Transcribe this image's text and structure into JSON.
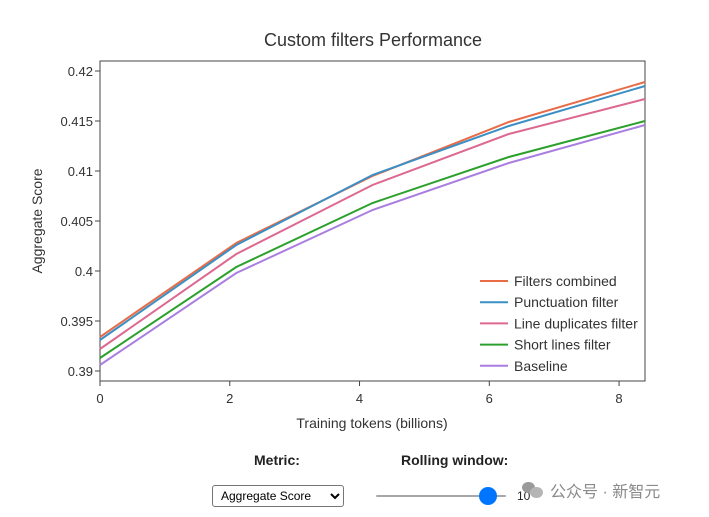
{
  "chart_data": {
    "type": "line",
    "title": "Custom filters Performance",
    "xlabel": "Training tokens (billions)",
    "ylabel": "Aggregate Score",
    "xlim": [
      0,
      8.4
    ],
    "ylim": [
      0.389,
      0.421
    ],
    "xticks": [
      0,
      2,
      4,
      6,
      8
    ],
    "yticks": [
      0.39,
      0.395,
      0.4,
      0.405,
      0.41,
      0.415,
      0.42
    ],
    "ytick_labels": [
      "0.39",
      "0.395",
      "0.4",
      "0.405",
      "0.41",
      "0.415",
      "0.42"
    ],
    "x": [
      0,
      2.1,
      4.2,
      6.3,
      8.4
    ],
    "legend_position": "bottom-right",
    "series": [
      {
        "name": "Filters combined",
        "color": "#e86c48",
        "values": [
          0.3934,
          0.4028,
          0.4095,
          0.4149,
          0.4189
        ]
      },
      {
        "name": "Punctuation filter",
        "color": "#3b8fc5",
        "values": [
          0.3931,
          0.4026,
          0.4096,
          0.4145,
          0.4185
        ]
      },
      {
        "name": "Line duplicates filter",
        "color": "#dd6890",
        "values": [
          0.3922,
          0.4017,
          0.4086,
          0.4137,
          0.4172
        ]
      },
      {
        "name": "Short lines filter",
        "color": "#2ca02c",
        "values": [
          0.3913,
          0.4004,
          0.4068,
          0.4114,
          0.415
        ]
      },
      {
        "name": "Baseline",
        "color": "#a97ee0",
        "values": [
          0.3906,
          0.3998,
          0.4061,
          0.4108,
          0.4146
        ]
      }
    ]
  },
  "controls": {
    "metric_label": "Metric:",
    "metric_value": "Aggregate Score",
    "rolling_label": "Rolling window:",
    "rolling_value": "10",
    "rolling_fraction": 0.92
  },
  "watermark": {
    "text": "公众号 · 新智元"
  }
}
